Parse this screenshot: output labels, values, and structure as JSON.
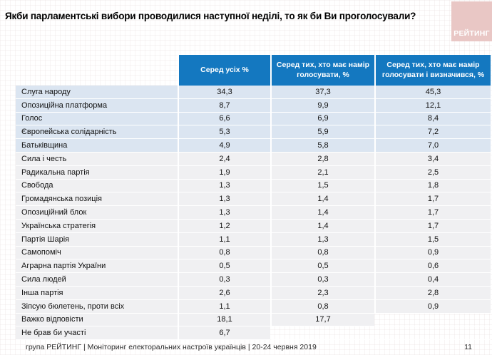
{
  "title": "Якби парламентські вибори проводилися наступної неділі, то як би Ви проголосували?",
  "logo": {
    "text": "РЕЙТИНГ"
  },
  "colors": {
    "header_blue": "#1478c0",
    "row_highlight": "#dbe5f1",
    "row_gray": "#f0f0f2",
    "logo_pink": "#e9c7c5"
  },
  "table": {
    "columns": [
      "Серед усіх %",
      "Серед тих, хто має намір голосувати, %",
      "Серед тих, хто має намір голосувати і визначився, %"
    ],
    "rows": [
      {
        "label": "Слуга народу",
        "values": [
          "34,3",
          "37,3",
          "45,3"
        ],
        "highlight": true
      },
      {
        "label": "Опозиційна платформа",
        "values": [
          "8,7",
          "9,9",
          "12,1"
        ],
        "highlight": true
      },
      {
        "label": "Голос",
        "values": [
          "6,6",
          "6,9",
          "8,4"
        ],
        "highlight": true
      },
      {
        "label": "Європейська солідарність",
        "values": [
          "5,3",
          "5,9",
          "7,2"
        ],
        "highlight": true
      },
      {
        "label": "Батьківщина",
        "values": [
          "4,9",
          "5,8",
          "7,0"
        ],
        "highlight": true
      },
      {
        "label": "Сила і честь",
        "values": [
          "2,4",
          "2,8",
          "3,4"
        ],
        "highlight": false
      },
      {
        "label": "Радикальна партія",
        "values": [
          "1,9",
          "2,1",
          "2,5"
        ],
        "highlight": false
      },
      {
        "label": "Свобода",
        "values": [
          "1,3",
          "1,5",
          "1,8"
        ],
        "highlight": false
      },
      {
        "label": "Громадянська позиція",
        "values": [
          "1,3",
          "1,4",
          "1,7"
        ],
        "highlight": false
      },
      {
        "label": "Опозиційний блок",
        "values": [
          "1,3",
          "1,4",
          "1,7"
        ],
        "highlight": false
      },
      {
        "label": "Українська стратегія",
        "values": [
          "1,2",
          "1,4",
          "1,7"
        ],
        "highlight": false
      },
      {
        "label": "Партія Шарія",
        "values": [
          "1,1",
          "1,3",
          "1,5"
        ],
        "highlight": false
      },
      {
        "label": "Самопоміч",
        "values": [
          "0,8",
          "0,8",
          "0,9"
        ],
        "highlight": false
      },
      {
        "label": "Аграрна партія України",
        "values": [
          "0,5",
          "0,5",
          "0,6"
        ],
        "highlight": false
      },
      {
        "label": "Сила людей",
        "values": [
          "0,3",
          "0,3",
          "0,4"
        ],
        "highlight": false
      },
      {
        "label": "Інша партія",
        "values": [
          "2,6",
          "2,3",
          "2,8"
        ],
        "highlight": false
      },
      {
        "label": "Зіпсую бюлетень, проти всіх",
        "values": [
          "1,1",
          "0,8",
          "0,9"
        ],
        "highlight": false
      },
      {
        "label": "Важко відповісти",
        "values": [
          "18,1",
          "17,7",
          ""
        ],
        "highlight": false
      },
      {
        "label": "Не брав би участі",
        "values": [
          "6,7",
          "",
          ""
        ],
        "highlight": false
      }
    ]
  },
  "footer": {
    "source": "група РЕЙТИНГ | Моніторинг електоральних настроїв українців | 20-24 червня 2019",
    "page": "11"
  },
  "chart_data": {
    "type": "table",
    "title": "Якби парламентські вибори проводилися наступної неділі, то як би Ви проголосували?",
    "categories": [
      "Слуга народу",
      "Опозиційна платформа",
      "Голос",
      "Європейська солідарність",
      "Батьківщина",
      "Сила і честь",
      "Радикальна партія",
      "Свобода",
      "Громадянська позиція",
      "Опозиційний блок",
      "Українська стратегія",
      "Партія Шарія",
      "Самопоміч",
      "Аграрна партія України",
      "Сила людей",
      "Інша партія",
      "Зіпсую бюлетень, проти всіх",
      "Важко відповісти",
      "Не брав би участі"
    ],
    "series": [
      {
        "name": "Серед усіх %",
        "values": [
          34.3,
          8.7,
          6.6,
          5.3,
          4.9,
          2.4,
          1.9,
          1.3,
          1.3,
          1.3,
          1.2,
          1.1,
          0.8,
          0.5,
          0.3,
          2.6,
          1.1,
          18.1,
          6.7
        ]
      },
      {
        "name": "Серед тих, хто має намір голосувати, %",
        "values": [
          37.3,
          9.9,
          6.9,
          5.9,
          5.8,
          2.8,
          2.1,
          1.5,
          1.4,
          1.4,
          1.4,
          1.3,
          0.8,
          0.5,
          0.3,
          2.3,
          0.8,
          17.7,
          null
        ]
      },
      {
        "name": "Серед тих, хто має намір голосувати і визначився, %",
        "values": [
          45.3,
          12.1,
          8.4,
          7.2,
          7.0,
          3.4,
          2.5,
          1.8,
          1.7,
          1.7,
          1.7,
          1.5,
          0.9,
          0.6,
          0.4,
          2.8,
          0.9,
          null,
          null
        ]
      }
    ],
    "layout": {
      "highlighted_rows": 5,
      "source_note": "група РЕЙТИНГ | Моніторинг електоральних настроїв українців | 20-24 червня 2019"
    }
  }
}
